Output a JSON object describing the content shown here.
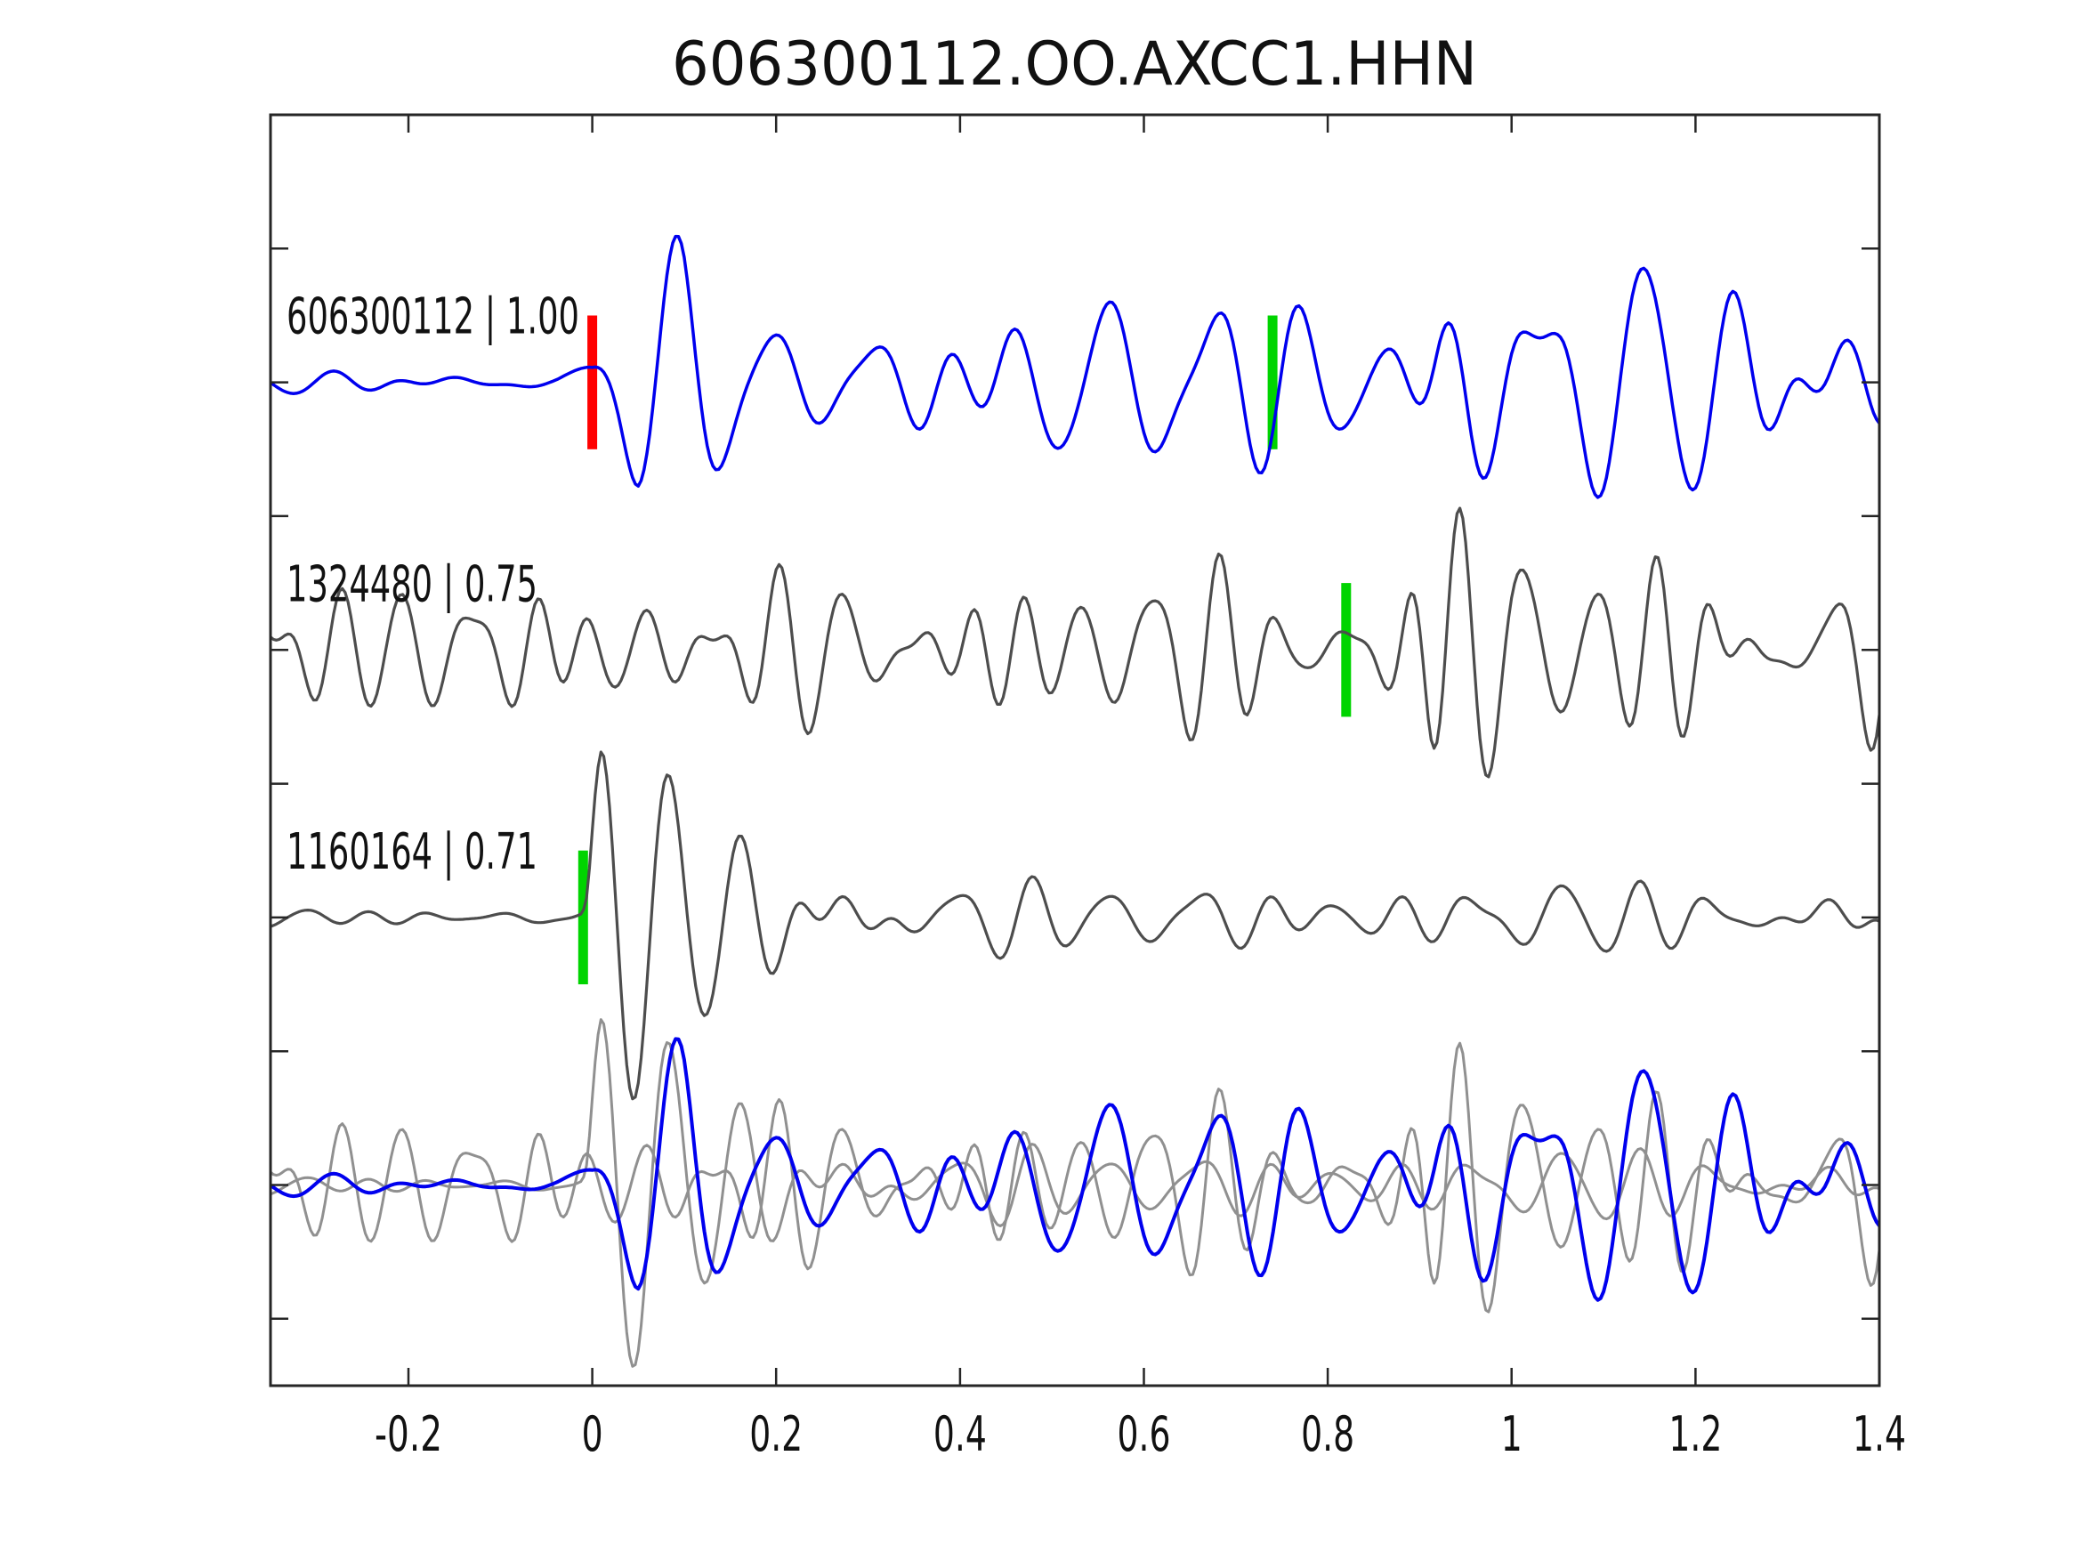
{
  "chart_data": {
    "type": "line",
    "title": "606300112.OO.AXCC1.HHN",
    "xlabel": "",
    "ylabel": "",
    "xlim": [
      -0.35,
      1.4
    ],
    "xticks": [
      -0.2,
      0,
      0.2,
      0.4,
      0.6,
      0.8,
      1,
      1.2,
      1.4
    ],
    "xtick_labels": [
      "-0.2",
      "0",
      "0.2",
      "0.4",
      "0.6",
      "0.8",
      "1",
      "1.2",
      "1.4"
    ],
    "ytick_unit_step": 0.5,
    "ylim_units": [
      -3.75,
      1.0
    ],
    "grid": false,
    "legend": "none",
    "colors": {
      "template_trace": "#0000ee",
      "detection_trace": "#4d4d4d",
      "overlay_gray": "#909090",
      "template_pick_marker": "#ff0000",
      "detection_pick_marker": "#00d400",
      "axis": "#262626",
      "text": "#111111"
    },
    "traces": [
      {
        "id": "template-606300112",
        "row": 1,
        "label": "606300112 | 1.00",
        "event_id": "606300112",
        "correlation": 1.0,
        "role": "template",
        "color": "#0000ee",
        "offset_units": 0,
        "markers": [
          {
            "type": "template-pick",
            "color": "#ff0000",
            "t": 0.0,
            "half_height_units": 0.25
          },
          {
            "type": "detection-pick",
            "color": "#00d400",
            "t": 0.74,
            "half_height_units": 0.25
          }
        ],
        "waveform": {
          "note": "band-limited oscillation estimated from pixels; quiet before t=0, strongest peak near t=0.93",
          "freq_cycles_per_unit": 10.5,
          "seed": 3,
          "envelope_units": [
            [
              -0.35,
              0.045
            ],
            [
              -0.04,
              0.045
            ],
            [
              0.0,
              0.1
            ],
            [
              0.05,
              0.3
            ],
            [
              0.1,
              0.38
            ],
            [
              0.17,
              0.34
            ],
            [
              0.28,
              0.3
            ],
            [
              0.42,
              0.24
            ],
            [
              0.55,
              0.26
            ],
            [
              0.68,
              0.3
            ],
            [
              0.78,
              0.33
            ],
            [
              0.86,
              0.38
            ],
            [
              0.92,
              0.55
            ],
            [
              0.98,
              0.46
            ],
            [
              1.05,
              0.36
            ],
            [
              1.2,
              0.35
            ],
            [
              1.4,
              0.38
            ]
          ]
        }
      },
      {
        "id": "detection-1324480",
        "row": 2,
        "label": "1324480 | 0.75",
        "event_id": "1324480",
        "correlation": 0.75,
        "role": "detection",
        "color": "#4d4d4d",
        "offset_units": -1,
        "markers": [
          {
            "type": "detection-pick",
            "color": "#00d400",
            "t": 0.82,
            "half_height_units": 0.25
          }
        ],
        "waveform": {
          "note": "continuous noisy oscillation; largest swings near t=0.83-0.93",
          "freq_cycles_per_unit": 15.0,
          "seed": 17,
          "envelope_units": [
            [
              -0.35,
              0.205
            ],
            [
              0.1,
              0.22
            ],
            [
              0.4,
              0.235
            ],
            [
              0.7,
              0.26
            ],
            [
              0.8,
              0.33
            ],
            [
              0.86,
              0.42
            ],
            [
              0.91,
              0.55
            ],
            [
              0.97,
              0.38
            ],
            [
              1.05,
              0.3
            ],
            [
              1.2,
              0.33
            ],
            [
              1.4,
              0.3
            ]
          ]
        }
      },
      {
        "id": "detection-1160164",
        "row": 3,
        "label": "1160164 | 0.71",
        "event_id": "1160164",
        "correlation": 0.71,
        "role": "detection",
        "color": "#4d4d4d",
        "offset_units": -2,
        "markers": [
          {
            "type": "detection-pick",
            "color": "#00d400",
            "t": -0.01,
            "half_height_units": 0.25
          }
        ],
        "waveform": {
          "note": "flat noise then sharp impulsive onset at t=0 decaying into low-amplitude coda",
          "freq_cycles_per_unit": 12.5,
          "seed": 29,
          "envelope_units": [
            [
              -0.35,
              0.035
            ],
            [
              -0.012,
              0.035
            ],
            [
              0.01,
              0.22
            ],
            [
              0.1,
              0.3
            ],
            [
              0.22,
              0.22
            ],
            [
              0.38,
              0.14
            ],
            [
              0.6,
              0.11
            ],
            [
              0.9,
              0.11
            ],
            [
              1.2,
              0.12
            ],
            [
              1.4,
              0.13
            ]
          ],
          "onset_spike": {
            "t0": -0.008,
            "amp_units": 0.52,
            "freq": 13.5,
            "decay": 0.11
          }
        }
      },
      {
        "id": "overlay",
        "row": 4,
        "label": "",
        "role": "overlay",
        "offset_units": -3,
        "markers": [],
        "overlay_of": [
          {
            "of": "detection-1160164",
            "color": "#909090",
            "stroke_width": 3
          },
          {
            "of": "detection-1324480",
            "color": "#909090",
            "stroke_width": 3
          },
          {
            "of": "template-606300112",
            "color": "#0000ee",
            "stroke_width": 4
          }
        ]
      }
    ]
  }
}
